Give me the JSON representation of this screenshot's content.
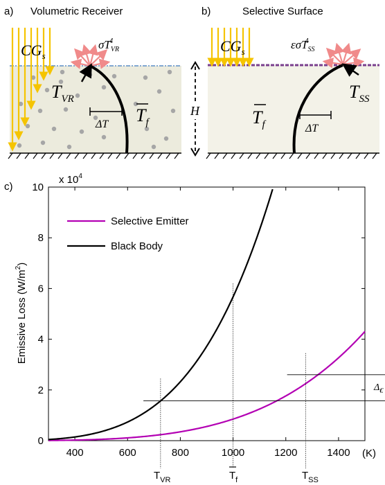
{
  "panel_a": {
    "letter": "a)",
    "title": "Volumetric Receiver",
    "flux_label_main": "CG",
    "flux_label_sub": "s",
    "emission_main": "σT",
    "emission_sub": "VR",
    "emission_sup": "4",
    "temp_main": "T",
    "temp_sub": "VR",
    "fluid_main": "T",
    "fluid_sub": "f",
    "delta_label": "ΔT",
    "height_label": "H",
    "colors": {
      "flux": "#f5c400",
      "emission": "#f08a8a",
      "medium": "#ecebdd",
      "particle": "#a6a6a6",
      "waterline": "#5b8ec7"
    }
  },
  "panel_b": {
    "letter": "b)",
    "title": "Selective Surface",
    "flux_label_main": "CG",
    "flux_label_sub": "s",
    "emission_main": "εσT",
    "emission_sub": "SS",
    "emission_sup": "4",
    "temp_main": "T",
    "temp_sub": "SS",
    "fluid_main": "T",
    "fluid_sub": "f",
    "delta_label": "ΔT",
    "colors": {
      "flux": "#f5c400",
      "emission": "#f08a8a",
      "medium": "#f3f2e8",
      "surface_line": "#7a3f8e"
    }
  },
  "panel_c": {
    "letter": "c)",
    "multiplier": "x 10",
    "multiplier_exp": "4",
    "unit_label": "(K)",
    "ylabel": "Emissive Loss  (W/m",
    "ylabel_exp": "2",
    "ylabel_close": ")",
    "marker_vr": "T",
    "marker_vr_sub": "VR",
    "marker_f": "T",
    "marker_f_sub": "f",
    "marker_ss": "T",
    "marker_ss_sub": "SS",
    "delta_main": "Δ",
    "delta_sub": "€"
  },
  "chart_data": {
    "type": "line",
    "xlim": [
      300,
      1500
    ],
    "ylim": [
      0,
      100000
    ],
    "x_ticks": [
      400,
      600,
      800,
      1000,
      1200,
      1400
    ],
    "y_ticks": [
      0,
      2,
      4,
      6,
      8,
      10
    ],
    "series": [
      {
        "name": "Selective Emitter",
        "color": "#b300b3",
        "emissivity": 0.15,
        "x": [
          300,
          400,
          500,
          600,
          700,
          800,
          900,
          1000,
          1100,
          1200,
          1300,
          1400,
          1500
        ],
        "y": [
          69,
          218,
          532,
          1102,
          2042,
          3484,
          5581,
          8505,
          12452,
          17636,
          24293,
          32676,
          43065
        ]
      },
      {
        "name": "Black Body",
        "color": "#000000",
        "emissivity": 1.0,
        "x": [
          300,
          400,
          500,
          600,
          700,
          800,
          900,
          1000,
          1100,
          1150
        ],
        "y": [
          459,
          1451,
          3544,
          7348,
          13614,
          23224,
          37201,
          56700,
          83015,
          99155
        ]
      }
    ],
    "markers": {
      "T_VR": {
        "x": 725,
        "y": 15680
      },
      "T_f": {
        "x": 1000,
        "y": 56700
      },
      "T_SS": {
        "x": 1275,
        "y": 26000
      }
    },
    "grid": false,
    "legend": "top-left"
  }
}
